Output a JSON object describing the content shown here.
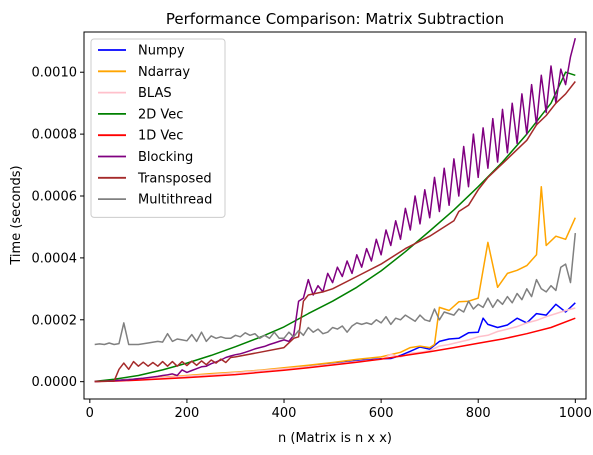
{
  "chart_data": {
    "type": "line",
    "title": "Performance Comparison: Matrix Subtraction",
    "xlabel": "n (Matrix is n x x)",
    "ylabel": "Time (seconds)",
    "xlim": [
      -12,
      1022
    ],
    "ylim": [
      -5.6e-05,
      0.00113
    ],
    "xticks": [
      0,
      200,
      400,
      600,
      800,
      1000
    ],
    "xtick_labels": [
      "0",
      "200",
      "400",
      "600",
      "800",
      "1000"
    ],
    "yticks": [
      0.0,
      0.0002,
      0.0004,
      0.0006,
      0.0008,
      0.001
    ],
    "ytick_labels": [
      "0.0000",
      "0.0002",
      "0.0004",
      "0.0006",
      "0.0008",
      "0.0010"
    ],
    "grid": false,
    "legend_position": "top-left",
    "colors": {
      "Numpy": "#0000ff",
      "Ndarray": "#ffa500",
      "BLAS": "#ffc0cb",
      "2D Vec": "#008000",
      "1D Vec": "#ff0000",
      "Blocking": "#800080",
      "Transposed": "#a52a2a",
      "Multithread": "#808080"
    },
    "series": [
      {
        "name": "Numpy",
        "x": [
          10,
          50,
          70,
          100,
          150,
          200,
          250,
          300,
          350,
          400,
          450,
          500,
          550,
          600,
          620,
          640,
          660,
          680,
          700,
          720,
          740,
          760,
          780,
          800,
          810,
          820,
          840,
          860,
          880,
          900,
          920,
          940,
          960,
          980,
          1000
        ],
        "values": [
          5e-07,
          3e-06,
          6e-06,
          9e-06,
          1.3e-05,
          1.8e-05,
          2.4e-05,
          3e-05,
          3.6e-05,
          4.3e-05,
          5e-05,
          5.8e-05,
          6.7e-05,
          7.4e-05,
          7.5e-05,
          8.5e-05,
          9.8e-05,
          0.000112,
          0.000105,
          0.00013,
          0.000138,
          0.00014,
          0.000158,
          0.00016,
          0.000205,
          0.000185,
          0.000175,
          0.000183,
          0.000205,
          0.00019,
          0.00022,
          0.000215,
          0.00025,
          0.000225,
          0.000255
        ]
      },
      {
        "name": "Ndarray",
        "x": [
          10,
          50,
          100,
          150,
          200,
          250,
          300,
          350,
          400,
          450,
          500,
          550,
          600,
          640,
          660,
          680,
          700,
          710,
          720,
          740,
          760,
          780,
          800,
          820,
          840,
          860,
          880,
          900,
          920,
          930,
          940,
          960,
          980,
          1000
        ],
        "values": [
          5e-07,
          3e-06,
          9e-06,
          1.4e-05,
          2e-05,
          2.6e-05,
          3.1e-05,
          3.7e-05,
          4.5e-05,
          5.3e-05,
          6.2e-05,
          7.2e-05,
          8e-05,
          9.5e-05,
          0.00011,
          0.000115,
          0.00011,
          0.00012,
          0.00024,
          0.00023,
          0.000258,
          0.00026,
          0.00027,
          0.00045,
          0.000305,
          0.00035,
          0.00036,
          0.000375,
          0.00041,
          0.00063,
          0.00044,
          0.00047,
          0.00046,
          0.00053
        ]
      },
      {
        "name": "BLAS",
        "x": [
          10,
          50,
          100,
          150,
          200,
          250,
          300,
          350,
          400,
          450,
          500,
          550,
          600,
          620,
          640,
          660,
          680,
          700,
          720,
          740,
          760,
          780,
          800,
          820,
          840,
          860,
          880,
          900,
          920,
          940,
          960,
          980,
          1000
        ],
        "values": [
          5e-07,
          3e-06,
          8e-06,
          1.3e-05,
          1.8e-05,
          2.3e-05,
          2.9e-05,
          3.5e-05,
          4.2e-05,
          4.8e-05,
          5.6e-05,
          6.5e-05,
          7.2e-05,
          8.8e-05,
          8e-05,
          9.2e-05,
          9.5e-05,
          0.0001,
          0.000115,
          0.00012,
          0.000128,
          0.000135,
          0.000145,
          0.00015,
          0.000162,
          0.00017,
          0.000178,
          0.00019,
          0.000198,
          0.00021,
          0.00022,
          0.00023,
          0.000238
        ]
      },
      {
        "name": "2D Vec",
        "x": [
          10,
          50,
          100,
          150,
          200,
          250,
          300,
          350,
          400,
          450,
          500,
          550,
          600,
          650,
          700,
          750,
          800,
          850,
          900,
          950,
          980,
          1000
        ],
        "values": [
          1e-06,
          8e-06,
          2e-05,
          3.8e-05,
          6e-05,
          8.5e-05,
          0.000113,
          0.000143,
          0.000177,
          0.00022,
          0.00026,
          0.000305,
          0.000358,
          0.00042,
          0.000487,
          0.000555,
          0.00063,
          0.00071,
          0.0008,
          0.0009,
          0.001,
          0.00099
        ]
      },
      {
        "name": "1D Vec",
        "x": [
          10,
          50,
          100,
          150,
          200,
          250,
          300,
          350,
          400,
          450,
          500,
          550,
          600,
          650,
          700,
          750,
          800,
          850,
          900,
          950,
          1000
        ],
        "values": [
          5e-07,
          2e-06,
          5e-06,
          9e-06,
          1.3e-05,
          1.8e-05,
          2.3e-05,
          3e-05,
          3.7e-05,
          4.5e-05,
          5.4e-05,
          6.3e-05,
          7.3e-05,
          8.5e-05,
          9.7e-05,
          0.00011,
          0.000124,
          0.000138,
          0.000155,
          0.000175,
          0.000205
        ]
      },
      {
        "name": "Blocking",
        "x": [
          10,
          50,
          60,
          70,
          80,
          90,
          100,
          110,
          120,
          130,
          140,
          150,
          160,
          170,
          180,
          190,
          200,
          210,
          220,
          230,
          240,
          250,
          260,
          270,
          280,
          290,
          300,
          310,
          320,
          330,
          340,
          350,
          360,
          370,
          380,
          390,
          400,
          410,
          420,
          430,
          440,
          450,
          460,
          470,
          480,
          490,
          500,
          510,
          520,
          530,
          540,
          550,
          560,
          570,
          580,
          590,
          600,
          610,
          620,
          630,
          640,
          650,
          660,
          670,
          680,
          690,
          700,
          710,
          720,
          730,
          740,
          750,
          760,
          770,
          780,
          790,
          800,
          810,
          820,
          830,
          840,
          850,
          860,
          870,
          880,
          890,
          900,
          910,
          920,
          930,
          940,
          950,
          960,
          970,
          980,
          990,
          1000
        ],
        "values": [
          5e-07,
          3e-06,
          4e-06,
          5e-06,
          6e-06,
          8e-06,
          1e-05,
          1.1e-05,
          1.3e-05,
          1.5e-05,
          1.7e-05,
          2e-05,
          2.2e-05,
          2.5e-05,
          2e-05,
          3.8e-05,
          3e-05,
          3.6e-05,
          4.2e-05,
          4.8e-05,
          5e-05,
          5.8e-05,
          6.4e-05,
          7e-05,
          7.8e-05,
          8.3e-05,
          8.7e-05,
          9e-05,
          9.5e-05,
          0.0001,
          0.000106,
          0.00011,
          0.000114,
          0.00012,
          0.000125,
          0.00013,
          0.000135,
          0.00013,
          0.00015,
          0.00026,
          0.00027,
          0.00033,
          0.00028,
          0.00031,
          0.00029,
          0.00035,
          0.00032,
          0.00037,
          0.00034,
          0.00039,
          0.00035,
          0.00041,
          0.00037,
          0.00043,
          0.00039,
          0.00046,
          0.00041,
          0.00049,
          0.00044,
          0.00052,
          0.00046,
          0.00056,
          0.00049,
          0.0006,
          0.00051,
          0.00062,
          0.00053,
          0.00066,
          0.00055,
          0.00069,
          0.00057,
          0.00072,
          0.0006,
          0.00076,
          0.00063,
          0.0008,
          0.00066,
          0.00082,
          0.00069,
          0.00085,
          0.00071,
          0.00088,
          0.00074,
          0.0009,
          0.00077,
          0.00093,
          0.0008,
          0.00096,
          0.00083,
          0.00099,
          0.00087,
          0.00102,
          0.0009,
          0.00101,
          0.00096,
          0.00105,
          0.00111
        ]
      },
      {
        "name": "Transposed",
        "x": [
          10,
          50,
          60,
          70,
          80,
          90,
          100,
          110,
          120,
          130,
          140,
          150,
          160,
          170,
          180,
          190,
          200,
          210,
          220,
          230,
          240,
          250,
          260,
          270,
          280,
          290,
          300,
          350,
          400,
          420,
          430,
          440,
          450,
          480,
          500,
          550,
          600,
          650,
          700,
          750,
          760,
          780,
          800,
          820,
          840,
          860,
          880,
          900,
          920,
          940,
          960,
          980,
          1000
        ],
        "values": [
          5e-07,
          2e-06,
          4e-05,
          6e-05,
          4e-05,
          6.5e-05,
          5e-05,
          6.3e-05,
          5e-05,
          6.2e-05,
          5e-05,
          6.5e-05,
          5e-05,
          6.5e-05,
          5e-05,
          6.5e-05,
          5.2e-05,
          6.6e-05,
          5.3e-05,
          6.7e-05,
          5.5e-05,
          7e-05,
          6e-05,
          7.3e-05,
          6.2e-05,
          7.8e-05,
          8e-05,
          9.5e-05,
          0.00011,
          0.00014,
          0.000145,
          0.00026,
          0.00028,
          0.00029,
          0.0003,
          0.00034,
          0.00038,
          0.00043,
          0.00047,
          0.00052,
          0.00055,
          0.00057,
          0.00062,
          0.00066,
          0.00069,
          0.00072,
          0.00075,
          0.00078,
          0.00083,
          0.00086,
          0.0009,
          0.00093,
          0.00097
        ]
      },
      {
        "name": "Multithread",
        "x": [
          10,
          20,
          30,
          40,
          50,
          60,
          70,
          80,
          90,
          100,
          120,
          140,
          150,
          160,
          170,
          180,
          190,
          200,
          210,
          220,
          230,
          240,
          250,
          260,
          270,
          280,
          290,
          300,
          310,
          320,
          330,
          340,
          350,
          360,
          370,
          380,
          390,
          400,
          410,
          420,
          430,
          440,
          450,
          460,
          470,
          480,
          490,
          500,
          510,
          520,
          530,
          540,
          550,
          560,
          570,
          580,
          590,
          600,
          610,
          620,
          630,
          640,
          650,
          660,
          670,
          680,
          690,
          700,
          710,
          720,
          730,
          740,
          750,
          760,
          770,
          780,
          790,
          800,
          810,
          820,
          830,
          840,
          850,
          860,
          870,
          880,
          890,
          900,
          910,
          920,
          930,
          940,
          950,
          960,
          970,
          980,
          990,
          1000
        ],
        "values": [
          0.00012,
          0.000122,
          0.00012,
          0.000125,
          0.00012,
          0.000123,
          0.00019,
          0.00012,
          0.00012,
          0.00012,
          0.000125,
          0.00013,
          0.000128,
          0.000155,
          0.00013,
          0.000138,
          0.000135,
          0.000132,
          0.000152,
          0.00013,
          0.00016,
          0.00013,
          0.000148,
          0.00014,
          0.000145,
          0.00014,
          0.00014,
          0.00015,
          0.000145,
          0.000158,
          0.00015,
          0.000155,
          0.00014,
          0.00015,
          0.00014,
          0.00016,
          0.00014,
          0.00014,
          0.00016,
          0.000145,
          0.000165,
          0.00015,
          0.000175,
          0.00016,
          0.00017,
          0.000155,
          0.00016,
          0.000175,
          0.00017,
          0.00018,
          0.00016,
          0.00018,
          0.00019,
          0.000185,
          0.00019,
          0.000185,
          0.0002,
          0.00019,
          0.00021,
          0.000185,
          0.000205,
          0.0002,
          0.000215,
          0.000205,
          0.000195,
          0.000215,
          0.0002,
          0.000195,
          0.000235,
          0.0002,
          0.000225,
          0.00022,
          0.000215,
          0.000235,
          0.000225,
          0.00026,
          0.000235,
          0.00025,
          0.00024,
          0.00027,
          0.00024,
          0.000265,
          0.00025,
          0.000275,
          0.000255,
          0.000285,
          0.000265,
          0.0003,
          0.000275,
          0.00033,
          0.0003,
          0.00029,
          0.00031,
          0.000295,
          0.00037,
          0.00038,
          0.00032,
          0.00048
        ]
      }
    ],
    "legend": [
      "Numpy",
      "Ndarray",
      "BLAS",
      "2D Vec",
      "1D Vec",
      "Blocking",
      "Transposed",
      "Multithread"
    ]
  }
}
